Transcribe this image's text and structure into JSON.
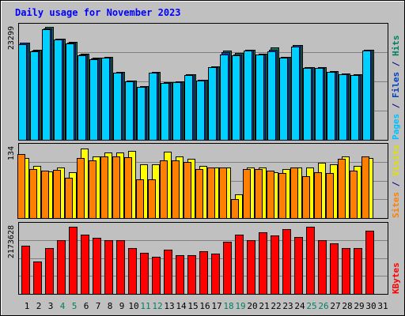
{
  "chart_data": {
    "type": "bar",
    "title": "Daily usage for November 2023",
    "x": [
      "1",
      "2",
      "3",
      "4",
      "5",
      "6",
      "7",
      "8",
      "9",
      "10",
      "11",
      "12",
      "13",
      "14",
      "15",
      "16",
      "17",
      "18",
      "19",
      "20",
      "21",
      "22",
      "23",
      "24",
      "25",
      "26",
      "27",
      "28",
      "29",
      "30",
      "31"
    ],
    "weekend_days": [
      "4",
      "5",
      "11",
      "12",
      "18",
      "19",
      "25",
      "26"
    ],
    "panels": [
      {
        "id": "top",
        "ylabel_parts": [
          {
            "text": "Pages",
            "color": "#00c0ff"
          },
          {
            "text": " / ",
            "color": "#000080"
          },
          {
            "text": "Files",
            "color": "#0040c0"
          },
          {
            "text": " / ",
            "color": "#000080"
          },
          {
            "text": "Hits",
            "color": "#008060"
          }
        ],
        "max_label": "23299",
        "ymax": 24500,
        "series": [
          {
            "name": "Hits",
            "color": "#008060",
            "values": [
              20800,
              19300,
              24100,
              21700,
              20900,
              18400,
              17600,
              17700,
              14500,
              12700,
              11500,
              14500,
              12300,
              12500,
              14100,
              12900,
              15700,
              19100,
              18600,
              19300,
              18400,
              19800,
              17800,
              20300,
              15600,
              15600,
              14700,
              14200,
              14000,
              19300,
              0
            ]
          },
          {
            "name": "Files",
            "color": "#0040c0",
            "values": [
              20700,
              19100,
              23900,
              21600,
              20700,
              18300,
              17400,
              17600,
              14400,
              12600,
              11400,
              14400,
              12200,
              12400,
              14000,
              12800,
              15600,
              18700,
              18300,
              19200,
              18300,
              19200,
              17700,
              20200,
              15500,
              15400,
              14600,
              14100,
              13900,
              19200,
              0
            ]
          },
          {
            "name": "Pages",
            "color": "#00d0ff",
            "values": [
              20500,
              19000,
              23700,
              21400,
              20600,
              18100,
              17300,
              17500,
              14300,
              12500,
              11300,
              14300,
              12100,
              12300,
              13900,
              12700,
              15500,
              18300,
              18100,
              19100,
              18200,
              18900,
              17600,
              20000,
              15400,
              15300,
              14500,
              14000,
              13800,
              19100,
              0
            ]
          }
        ]
      },
      {
        "id": "middle",
        "ylabel_parts": [
          {
            "text": "Sites",
            "color": "#ff8000"
          },
          {
            "text": " / ",
            "color": "#000080"
          },
          {
            "text": "Visits",
            "color": "#e0e000"
          }
        ],
        "max_label": "134",
        "ymax": 140,
        "series": [
          {
            "name": "Visits",
            "color": "#ffff00",
            "values": [
              116,
              100,
              90,
              98,
              88,
              134,
              118,
              126,
              127,
              130,
              103,
              103,
              128,
              118,
              114,
              101,
              98,
              98,
              46,
              98,
              98,
              88,
              94,
              98,
              97,
              106,
              104,
              118,
              100,
              116,
              0
            ]
          },
          {
            "name": "Sites",
            "color": "#ff8000",
            "values": [
              124,
              95,
              91,
              93,
              77,
              115,
              111,
              119,
              119,
              117,
              75,
              75,
              111,
              111,
              108,
              95,
              97,
              98,
              36,
              94,
              95,
              91,
              87,
              97,
              81,
              88,
              87,
              114,
              91,
              118,
              0
            ]
          }
        ]
      },
      {
        "id": "bottom",
        "ylabel_parts": [
          {
            "text": "KBytes",
            "color": "#ff0000"
          }
        ],
        "max_label": "2173628",
        "ymax": 2200000,
        "series": [
          {
            "name": "KBytes",
            "color": "#ff0000",
            "values": [
              1520000,
              1020000,
              1460000,
              1690000,
              2120000,
              1880000,
              1780000,
              1690000,
              1700000,
              1440000,
              1290000,
              1180000,
              1410000,
              1230000,
              1230000,
              1350000,
              1280000,
              1640000,
              1880000,
              1710000,
              1950000,
              1850000,
              2040000,
              1810000,
              2120000,
              1690000,
              1610000,
              1440000,
              1450000,
              2010000,
              0
            ]
          }
        ]
      }
    ]
  }
}
